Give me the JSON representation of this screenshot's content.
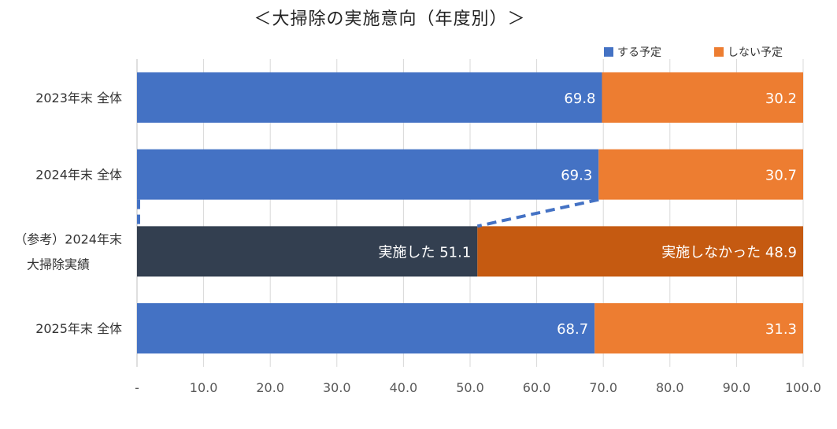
{
  "chart_data": {
    "type": "bar",
    "orientation": "horizontal",
    "stacked": true,
    "title": "＜大掃除の実施意向（年度別）＞",
    "categories": [
      [
        "2023年末 全体"
      ],
      [
        "2024年末 全体"
      ],
      [
        "（参考）2024年末",
        "大掃除実績"
      ],
      [
        "2025年末 全体"
      ]
    ],
    "series": [
      {
        "name": "する予定",
        "color": "#4472c4",
        "values": [
          69.8,
          69.3,
          null,
          68.7
        ]
      },
      {
        "name": "しない予定",
        "color": "#ed7d31",
        "values": [
          30.2,
          30.7,
          null,
          31.3
        ]
      },
      {
        "name": "実施した",
        "color": "#333f50",
        "values": [
          null,
          null,
          51.1,
          null
        ]
      },
      {
        "name": "実施しなかった",
        "color": "#c55a11",
        "values": [
          null,
          null,
          48.9,
          null
        ]
      }
    ],
    "data_labels": [
      [
        "69.8",
        "30.2"
      ],
      [
        "69.3",
        "30.7"
      ],
      [
        "実施した  51.1",
        "実施しなかった  48.9"
      ],
      [
        "68.7",
        "31.3"
      ]
    ],
    "xlim": [
      0,
      100
    ],
    "xticks": [
      "-",
      "10.0",
      "20.0",
      "30.0",
      "40.0",
      "50.0",
      "60.0",
      "70.0",
      "80.0",
      "90.0",
      "100.0"
    ],
    "grid": true,
    "legend": {
      "position": "top-right",
      "entries": [
        {
          "label": "する予定",
          "color": "#4472c4"
        },
        {
          "label": "しない予定",
          "color": "#ed7d31"
        }
      ]
    },
    "annotation": "dashed callout linking 2024年末 全体 to 2024年末 大掃除実績"
  }
}
